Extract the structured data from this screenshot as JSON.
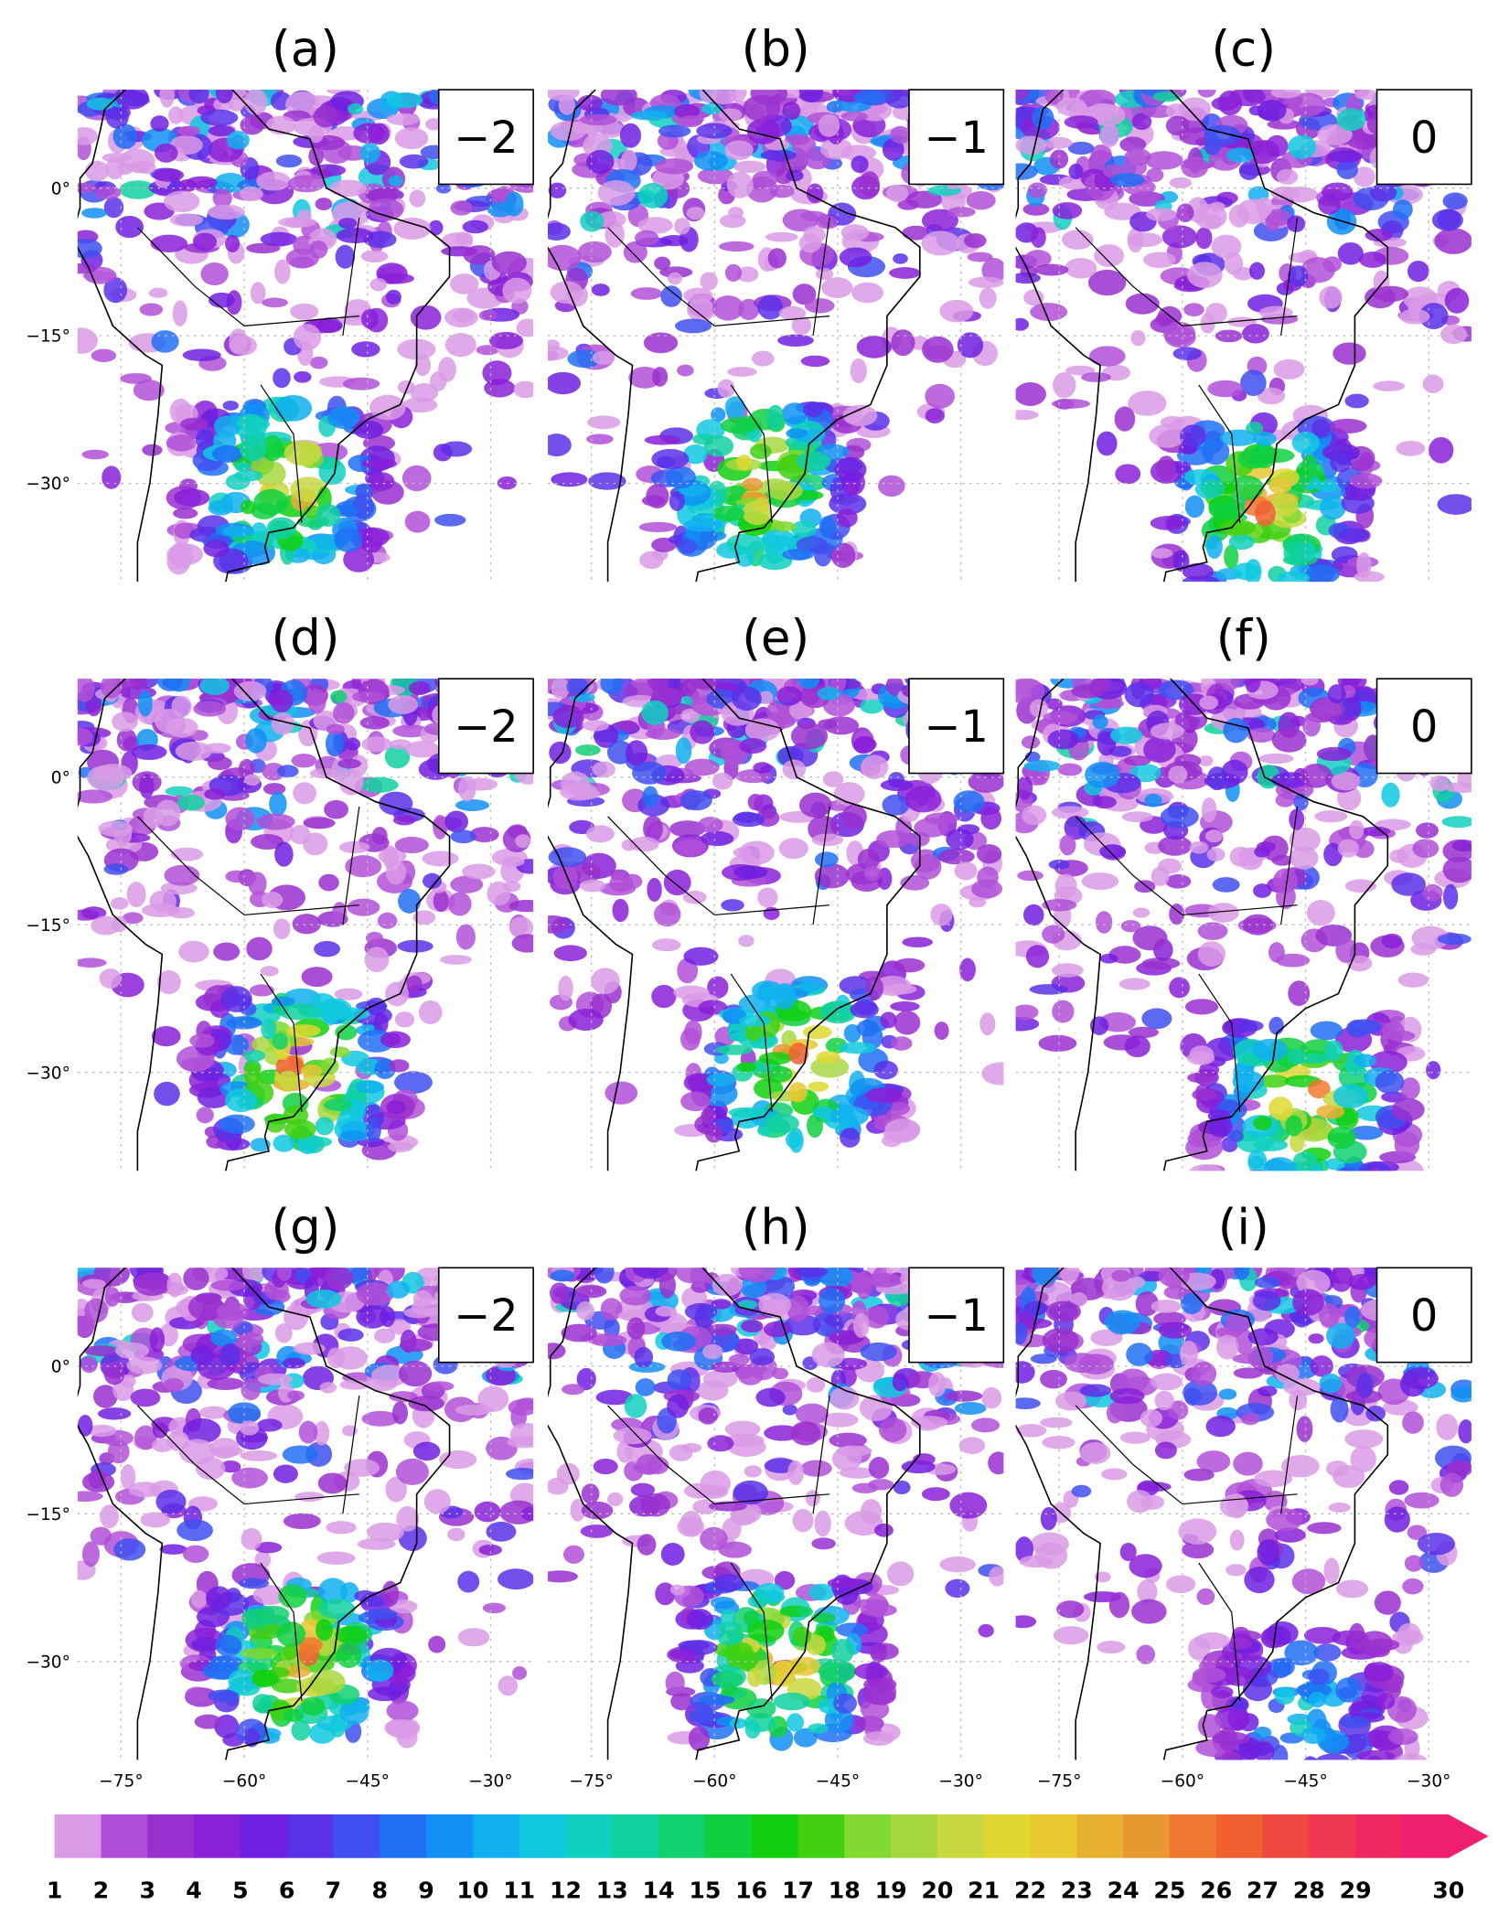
{
  "panels": [
    {
      "label": "(a)",
      "lag": "−2"
    },
    {
      "label": "(b)",
      "lag": "−1"
    },
    {
      "label": "(c)",
      "lag": "0"
    },
    {
      "label": "(d)",
      "lag": "−2"
    },
    {
      "label": "(e)",
      "lag": "−1"
    },
    {
      "label": "(f)",
      "lag": "0"
    },
    {
      "label": "(g)",
      "lag": "−2"
    },
    {
      "label": "(h)",
      "lag": "−1"
    },
    {
      "label": "(i)",
      "lag": "0"
    }
  ],
  "y_tick_labels": [
    "0°",
    "−15°",
    "−30°"
  ],
  "x_tick_labels": [
    "−75°",
    "−60°",
    "−45°",
    "−30°"
  ],
  "colorbar": {
    "labels": [
      1,
      2,
      3,
      4,
      5,
      6,
      7,
      8,
      9,
      10,
      11,
      12,
      13,
      14,
      15,
      16,
      17,
      18,
      19,
      20,
      21,
      22,
      23,
      24,
      25,
      26,
      27,
      28,
      29,
      30
    ]
  }
}
